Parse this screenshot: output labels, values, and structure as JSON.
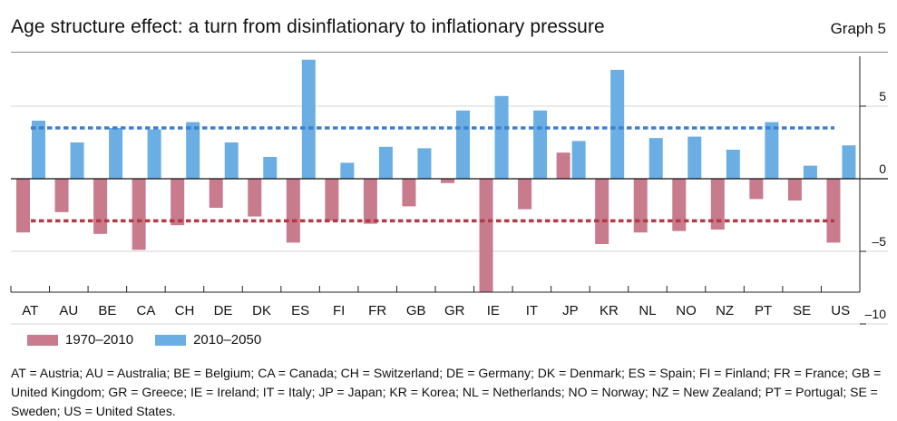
{
  "header": {
    "title": "Age structure effect: a turn from disinflationary to inflationary pressure",
    "graph_label": "Graph 5"
  },
  "legend": [
    {
      "label": "1970–2010",
      "color": "#c97b8e"
    },
    {
      "label": "2010–2050",
      "color": "#6aaee4"
    }
  ],
  "footnote": "AT = Austria;  AU = Australia;  BE = Belgium;  CA = Canada;  CH = Switzerland;  DE = Germany;  DK = Denmark;  ES = Spain;  FI = Finland; FR = France; GB = United Kingdom; GR = Greece; IE = Ireland; IT = Italy; JP = Japan; KR = Korea; NL = Netherlands; NO = Norway; NZ = New Zealand; PT = Portugal; SE = Sweden; US = United States.",
  "chart_data": {
    "type": "bar",
    "categories": [
      "AT",
      "AU",
      "BE",
      "CA",
      "CH",
      "DE",
      "DK",
      "ES",
      "FI",
      "FR",
      "GB",
      "GR",
      "IE",
      "IT",
      "JP",
      "KR",
      "NL",
      "NO",
      "NZ",
      "PT",
      "SE",
      "US"
    ],
    "series": [
      {
        "name": "1970–2010",
        "color": "#c97b8e",
        "values": [
          -3.7,
          -2.3,
          -3.8,
          -4.9,
          -3.2,
          -2.0,
          -2.6,
          -4.4,
          -2.9,
          -3.1,
          -1.9,
          -0.3,
          -7.8,
          -2.1,
          1.8,
          -4.5,
          -3.7,
          -3.6,
          -3.5,
          -1.4,
          -1.5,
          -4.4
        ]
      },
      {
        "name": "2010–2050",
        "color": "#6aaee4",
        "values": [
          4.0,
          2.5,
          3.5,
          3.4,
          3.9,
          2.5,
          1.5,
          8.2,
          1.1,
          2.2,
          2.1,
          4.7,
          5.7,
          4.7,
          2.6,
          7.5,
          2.8,
          2.9,
          2.0,
          3.9,
          0.9,
          2.3
        ]
      }
    ],
    "reference_lines": [
      {
        "series": "2010–2050",
        "value": 3.5,
        "color": "#3f7fd0",
        "style": "dashed"
      },
      {
        "series": "1970–2010",
        "value": -2.9,
        "color": "#b23a46",
        "style": "dashed"
      }
    ],
    "yticks": [
      5,
      0,
      -5,
      -10
    ],
    "ylim": [
      -10,
      8.5
    ],
    "grid": "horizontal",
    "legend_position": "bottom-left"
  }
}
